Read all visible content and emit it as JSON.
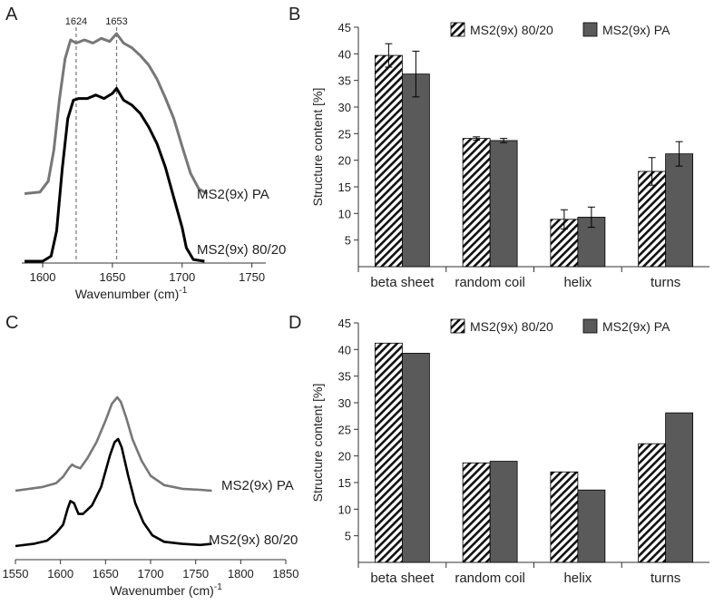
{
  "colors": {
    "pa": "#5a5a5a",
    "blend": "#000000",
    "spectrum_pa": "#777777",
    "axis": "#333333",
    "hatch": "#111111"
  },
  "chart_data": [
    {
      "panel": "A",
      "type": "line",
      "title": "",
      "xlabel": "Wavenumber (cm)",
      "xlabel_sup": "-1",
      "xlim": [
        1585,
        1760
      ],
      "xticks": [
        1600,
        1650,
        1700,
        1750
      ],
      "peak_markers": [
        1624,
        1653
      ],
      "series": [
        {
          "name": "MS2(9x) PA",
          "color": "#777777",
          "x": [
            1587,
            1598,
            1604,
            1608,
            1612,
            1616,
            1620,
            1624,
            1630,
            1636,
            1642,
            1648,
            1653,
            1658,
            1664,
            1670,
            1676,
            1682,
            1688,
            1694,
            1700,
            1706,
            1712,
            1718
          ],
          "y": [
            0.02,
            0.03,
            0.1,
            0.3,
            0.62,
            0.88,
            1.0,
            0.98,
            1.0,
            0.98,
            1.01,
            0.99,
            1.04,
            0.98,
            0.95,
            0.9,
            0.84,
            0.75,
            0.63,
            0.5,
            0.32,
            0.15,
            0.05,
            0.02
          ]
        },
        {
          "name": "MS2(9x) 80/20",
          "color": "#000000",
          "x": [
            1587,
            1600,
            1606,
            1610,
            1614,
            1618,
            1622,
            1626,
            1632,
            1638,
            1644,
            1650,
            1653,
            1658,
            1664,
            1670,
            1676,
            1682,
            1688,
            1694,
            1700,
            1703,
            1708,
            1716
          ],
          "y": [
            0.0,
            0.0,
            0.03,
            0.18,
            0.55,
            0.85,
            0.96,
            0.97,
            0.97,
            0.99,
            0.97,
            1.0,
            1.03,
            0.96,
            0.93,
            0.88,
            0.8,
            0.7,
            0.56,
            0.38,
            0.2,
            0.08,
            0.01,
            0.0
          ]
        }
      ]
    },
    {
      "panel": "B",
      "type": "bar",
      "title": "",
      "xlabel": "",
      "ylabel": "Structure content [%]",
      "ylim": [
        0,
        45
      ],
      "yticks": [
        5,
        10,
        15,
        20,
        25,
        30,
        35,
        40,
        45
      ],
      "categories": [
        "beta sheet",
        "random coil",
        "helix",
        "turns"
      ],
      "series": [
        {
          "name": "MS2(9x) 80/20",
          "pattern": "hatch",
          "values": [
            39.7,
            24.1,
            8.9,
            17.9
          ],
          "errors": [
            2.2,
            0.3,
            1.8,
            2.6
          ]
        },
        {
          "name": "MS2(9x) PA",
          "pattern": "solid",
          "values": [
            36.2,
            23.7,
            9.3,
            21.2
          ],
          "errors": [
            4.3,
            0.4,
            1.9,
            2.3
          ]
        }
      ],
      "legend": "top"
    },
    {
      "panel": "C",
      "type": "line",
      "title": "",
      "xlabel": "Wavenumber (cm)",
      "xlabel_sup": "-1",
      "xlim": [
        1550,
        1850
      ],
      "xticks": [
        1550,
        1600,
        1650,
        1700,
        1750,
        1800,
        1850
      ],
      "series": [
        {
          "name": "MS2(9x) PA",
          "color": "#777777",
          "x": [
            1550,
            1580,
            1595,
            1603,
            1610,
            1613,
            1616,
            1622,
            1630,
            1640,
            1650,
            1657,
            1663,
            1667,
            1673,
            1680,
            1690,
            1700,
            1715,
            1735,
            1755,
            1768
          ],
          "y": [
            0.0,
            0.04,
            0.08,
            0.15,
            0.25,
            0.28,
            0.26,
            0.24,
            0.35,
            0.52,
            0.75,
            0.93,
            1.0,
            0.95,
            0.78,
            0.55,
            0.32,
            0.16,
            0.06,
            0.02,
            0.01,
            0.0
          ]
        },
        {
          "name": "MS2(9x) 80/20",
          "color": "#000000",
          "x": [
            1550,
            1570,
            1585,
            1595,
            1603,
            1608,
            1611,
            1615,
            1620,
            1625,
            1635,
            1645,
            1655,
            1660,
            1664,
            1668,
            1675,
            1683,
            1692,
            1702,
            1715,
            1735,
            1755,
            1768
          ],
          "y": [
            0.0,
            0.02,
            0.05,
            0.12,
            0.2,
            0.35,
            0.42,
            0.4,
            0.3,
            0.3,
            0.38,
            0.55,
            0.85,
            0.97,
            1.0,
            0.92,
            0.66,
            0.4,
            0.22,
            0.1,
            0.04,
            0.02,
            0.01,
            0.02
          ]
        }
      ]
    },
    {
      "panel": "D",
      "type": "bar",
      "title": "",
      "xlabel": "",
      "ylabel": "Structure content [%]",
      "ylim": [
        0,
        45
      ],
      "yticks": [
        5,
        10,
        15,
        20,
        25,
        30,
        35,
        40,
        45
      ],
      "categories": [
        "beta sheet",
        "random coil",
        "helix",
        "turns"
      ],
      "series": [
        {
          "name": "MS2(9x) 80/20",
          "pattern": "hatch",
          "values": [
            41.2,
            18.7,
            17.0,
            22.3
          ]
        },
        {
          "name": "MS2(9x) PA",
          "pattern": "solid",
          "values": [
            39.3,
            19.0,
            13.6,
            28.1
          ]
        }
      ],
      "legend": "top"
    }
  ]
}
